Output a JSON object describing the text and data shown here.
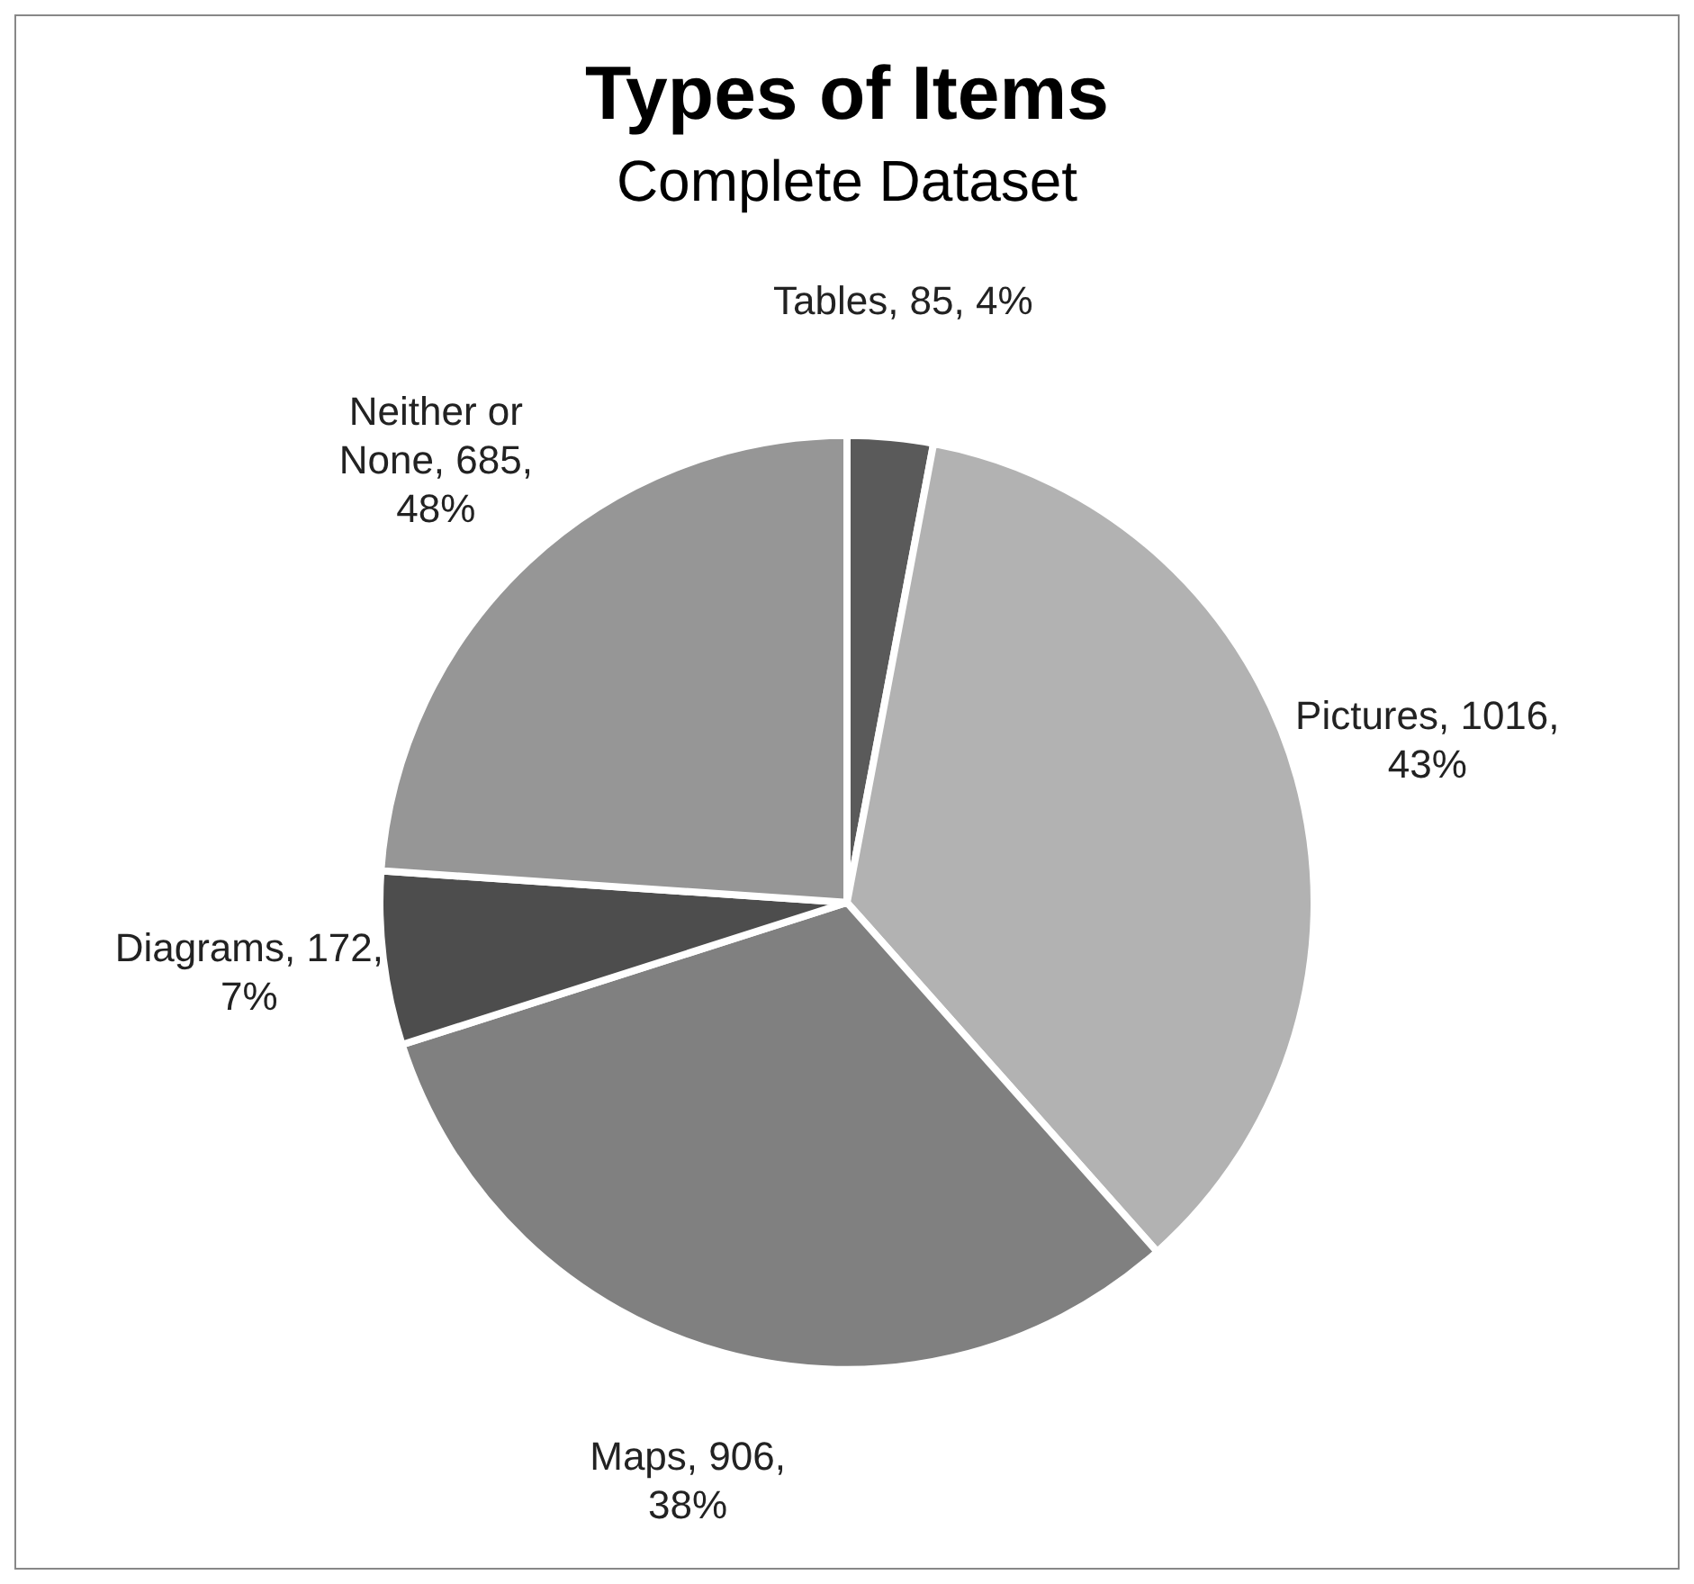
{
  "chart_data": {
    "type": "pie",
    "title": "Types of Items",
    "subtitle": "Complete Dataset",
    "categories": [
      "Tables",
      "Pictures",
      "Maps",
      "Diagrams",
      "Neither or None"
    ],
    "values": [
      85,
      1016,
      906,
      172,
      685
    ],
    "colors": [
      "#5a5a5a",
      "#b2b2b2",
      "#808080",
      "#4d4d4d",
      "#969696"
    ],
    "value_labels": [
      "85, 4%",
      "1016, 43%",
      "906, 38%",
      "172, 7%",
      "685, 48%"
    ],
    "legend": false
  }
}
